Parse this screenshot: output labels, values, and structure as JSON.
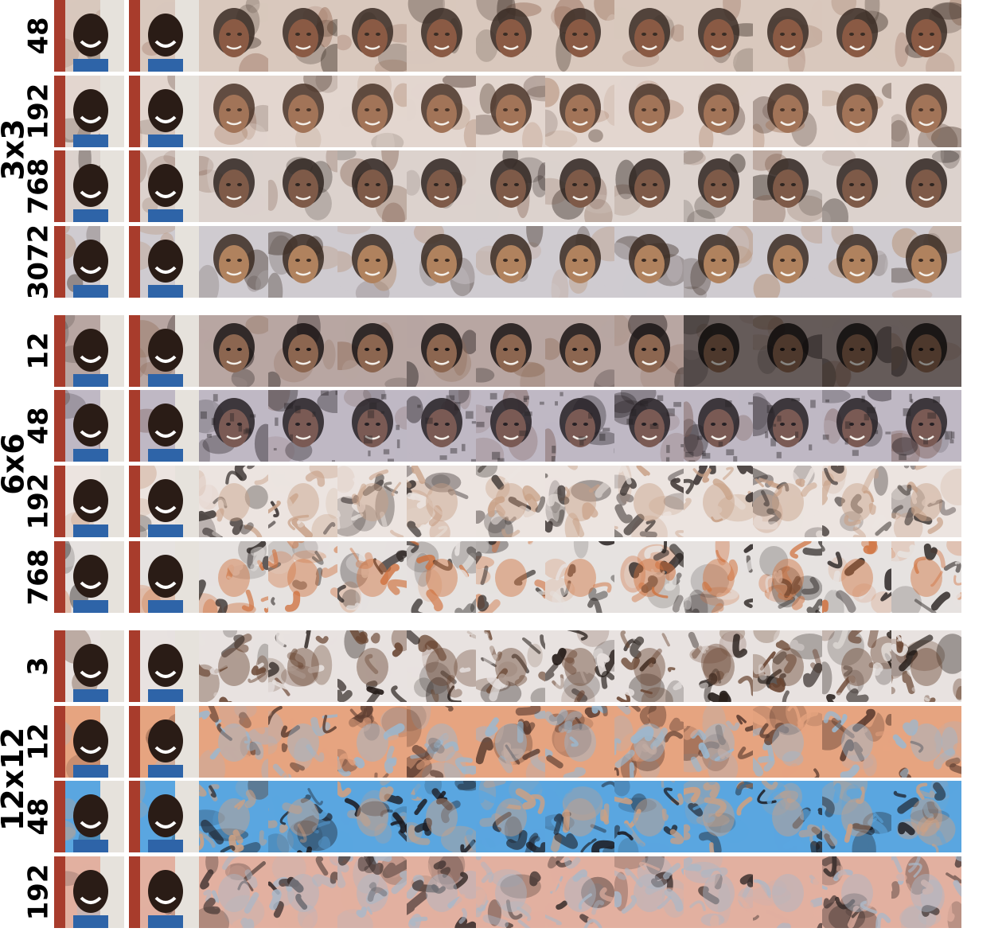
{
  "groups": [
    {
      "label": "3x3",
      "rows": [
        {
          "label": "48",
          "style": "faces-smooth",
          "pal": [
            "#d9c8bd",
            "#8a5a44",
            "#3a2c24"
          ]
        },
        {
          "label": "192",
          "style": "faces-soft",
          "pal": [
            "#e3d6cf",
            "#a27458",
            "#4a3428"
          ]
        },
        {
          "label": "768",
          "style": "faces-soft",
          "pal": [
            "#dcd2cd",
            "#7e5a48",
            "#2f2520"
          ]
        },
        {
          "label": "3072",
          "style": "faces-smooth",
          "pal": [
            "#cfcbd0",
            "#b0825e",
            "#3b2b22"
          ]
        }
      ]
    },
    {
      "label": "6x6",
      "rows": [
        {
          "label": "12",
          "style": "faces-dark",
          "pal": [
            "#b8a6a2",
            "#8c6650",
            "#1a1414"
          ]
        },
        {
          "label": "48",
          "style": "faces-noisy",
          "pal": [
            "#bfb8c4",
            "#7a5a54",
            "#262024"
          ]
        },
        {
          "label": "192",
          "style": "abstract",
          "pal": [
            "#ece4e0",
            "#c8a086",
            "#3c3432"
          ]
        },
        {
          "label": "768",
          "style": "abstract-warm",
          "pal": [
            "#e6e2e0",
            "#d0703c",
            "#2c2624"
          ]
        }
      ]
    },
    {
      "label": "12x12",
      "rows": [
        {
          "label": "3",
          "style": "abstract-brown",
          "pal": [
            "#e8e2e0",
            "#6a4632",
            "#221a16"
          ]
        },
        {
          "label": "12",
          "style": "abstract-blue",
          "pal": [
            "#e6a480",
            "#9ab8d0",
            "#583a2e"
          ]
        },
        {
          "label": "48",
          "style": "abstract-sky",
          "pal": [
            "#5aa6e0",
            "#d0a080",
            "#1c1c22"
          ]
        },
        {
          "label": "192",
          "style": "abstract-pink",
          "pal": [
            "#e2b0a0",
            "#aab8c8",
            "#3a2e2c"
          ]
        }
      ]
    }
  ],
  "columns": 13,
  "colors": {
    "background": "#ffffff",
    "text": "#000000"
  }
}
